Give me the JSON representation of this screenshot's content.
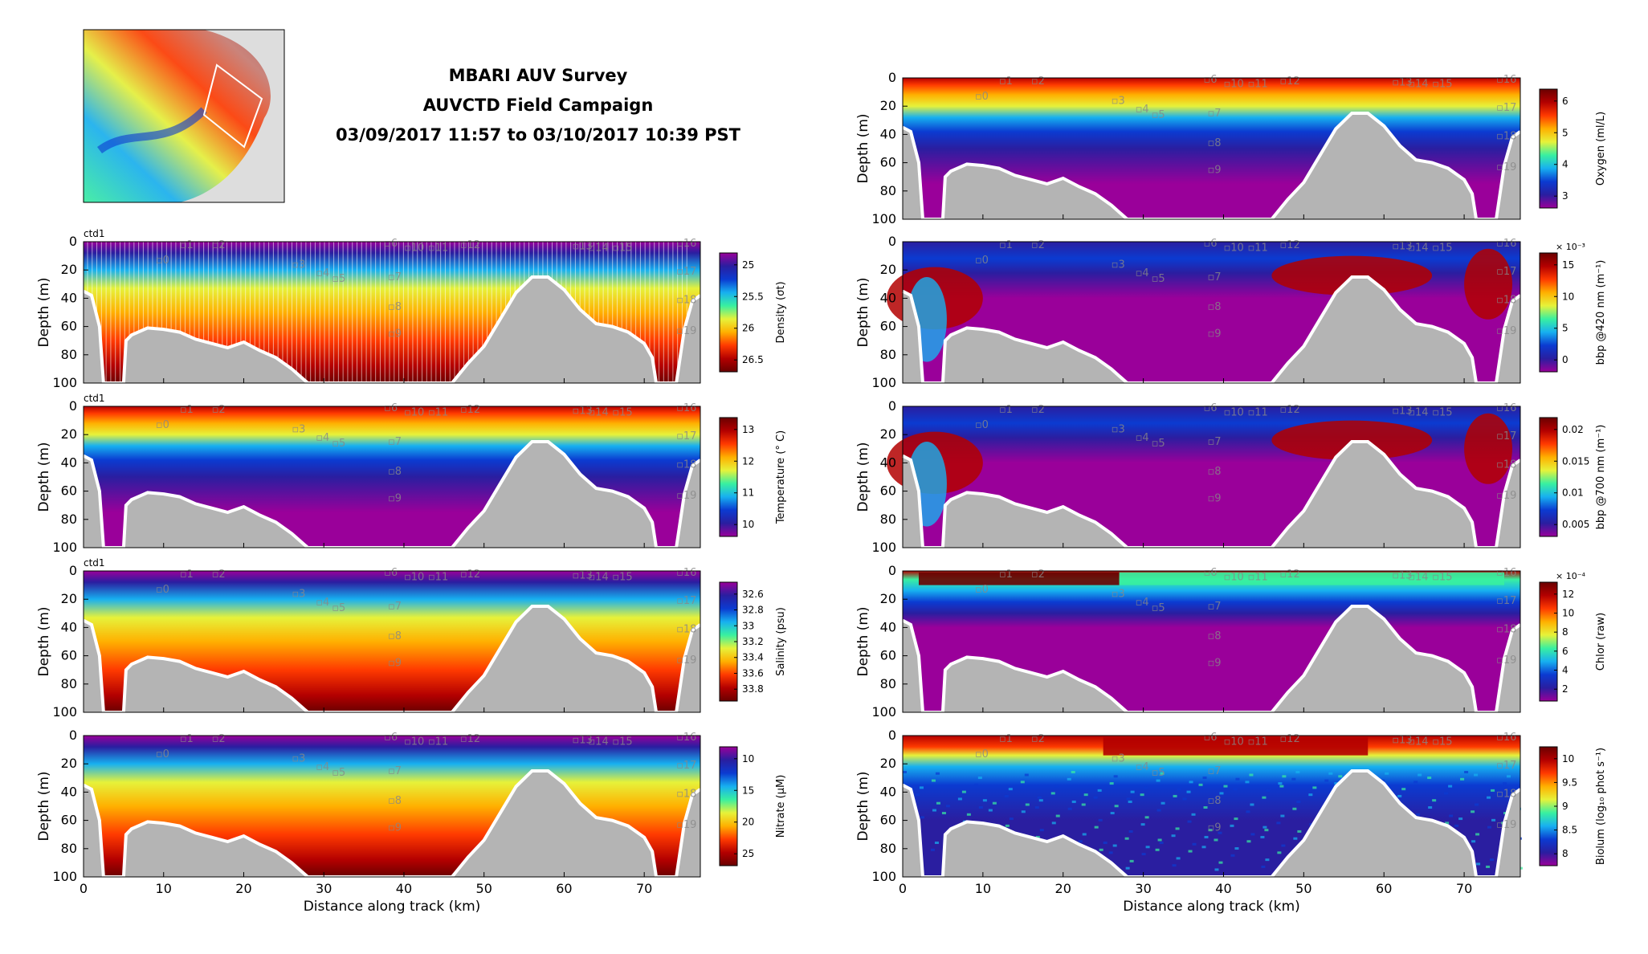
{
  "title": {
    "line1": "MBARI AUV Survey",
    "line2": "AUVCTD Field Campaign",
    "line3": "03/09/2017 11:57 to 03/10/2017 10:39 PST"
  },
  "colors": {
    "terrain": "#b4b4b4",
    "water_stops": [
      "#9a009a",
      "#2a1ea0",
      "#0b3bd1",
      "#17b0f0",
      "#39f0a0",
      "#e6f23a",
      "#ffb000",
      "#ff3a00",
      "#b30000",
      "#6a0000"
    ]
  },
  "axes": {
    "ylabel": "Depth (m)",
    "xlabel": "Distance along track (km)",
    "y_ticks": [
      "0",
      "20",
      "40",
      "60",
      "80",
      "100"
    ],
    "x_ticks": [
      "0",
      "10",
      "20",
      "30",
      "40",
      "50",
      "60",
      "70"
    ]
  },
  "station_labels": {
    "left": [
      "1",
      "2",
      "3",
      "4",
      "5",
      "6",
      "7",
      "8",
      "9",
      "10",
      "11",
      "12",
      "13",
      "14",
      "15",
      "16",
      "17",
      "18",
      "19",
      "0"
    ]
  },
  "ctd_label": "ctd1",
  "chart_data": [
    {
      "type": "heatmap",
      "id": "density",
      "ylabel": "Depth (m)",
      "ylim": [
        100,
        0
      ],
      "xlim": [
        0,
        77
      ],
      "colorbar_label": "Density (σt)",
      "colorbar_ticks": [
        "25",
        "25.5",
        "26",
        "26.5"
      ],
      "colorbar_reversed": true,
      "show_ctd": true,
      "show_yoyo": true
    },
    {
      "type": "heatmap",
      "id": "temperature",
      "ylabel": "Depth (m)",
      "ylim": [
        100,
        0
      ],
      "xlim": [
        0,
        77
      ],
      "colorbar_label": "Temperature (° C)",
      "colorbar_ticks": [
        "13",
        "12",
        "11",
        "10"
      ],
      "show_ctd": true
    },
    {
      "type": "heatmap",
      "id": "salinity",
      "ylabel": "Depth (m)",
      "ylim": [
        100,
        0
      ],
      "xlim": [
        0,
        77
      ],
      "colorbar_label": "Salinity (psu)",
      "colorbar_ticks": [
        "32.6",
        "32.8",
        "33",
        "33.2",
        "33.4",
        "33.6",
        "33.8"
      ],
      "show_ctd": true
    },
    {
      "type": "heatmap",
      "id": "nitrate",
      "ylabel": "Depth (m)",
      "ylim": [
        100,
        0
      ],
      "xlim": [
        0,
        77
      ],
      "xlabel": "Distance along track (km)",
      "colorbar_label": "Nitrate (μM)",
      "colorbar_ticks": [
        "10",
        "15",
        "20",
        "25"
      ]
    },
    {
      "type": "heatmap",
      "id": "oxygen",
      "ylabel": "Depth (m)",
      "ylim": [
        100,
        0
      ],
      "xlim": [
        0,
        77
      ],
      "colorbar_label": "Oxygen (ml/L)",
      "colorbar_ticks": [
        "6",
        "5",
        "4",
        "3"
      ]
    },
    {
      "type": "heatmap",
      "id": "bbp420",
      "ylim": [
        100,
        0
      ],
      "xlim": [
        0,
        77
      ],
      "colorbar_label": "bbp @420 nm (m⁻¹)",
      "colorbar_ticks": [
        "15",
        "10",
        "5",
        "0"
      ],
      "colorbar_exponent": "× 10⁻³"
    },
    {
      "type": "heatmap",
      "id": "bbp700",
      "ylim": [
        100,
        0
      ],
      "xlim": [
        0,
        77
      ],
      "colorbar_label": "bbp @700 nm (m⁻¹)",
      "colorbar_ticks": [
        "0.02",
        "0.015",
        "0.01",
        "0.005"
      ]
    },
    {
      "type": "heatmap",
      "id": "chlor",
      "ylim": [
        100,
        0
      ],
      "xlim": [
        0,
        77
      ],
      "colorbar_label": "Chlor (raw)",
      "colorbar_ticks": [
        "12",
        "10",
        "8",
        "6",
        "4",
        "2"
      ],
      "colorbar_exponent": "× 10⁻⁴"
    },
    {
      "type": "heatmap",
      "id": "biolum",
      "ylim": [
        100,
        0
      ],
      "xlim": [
        0,
        77
      ],
      "xlabel": "Distance along track (km)",
      "colorbar_label": "Biolum (log₁₀ phot s⁻¹)",
      "colorbar_ticks": [
        "10",
        "9.5",
        "9",
        "8.5",
        "8"
      ]
    }
  ]
}
